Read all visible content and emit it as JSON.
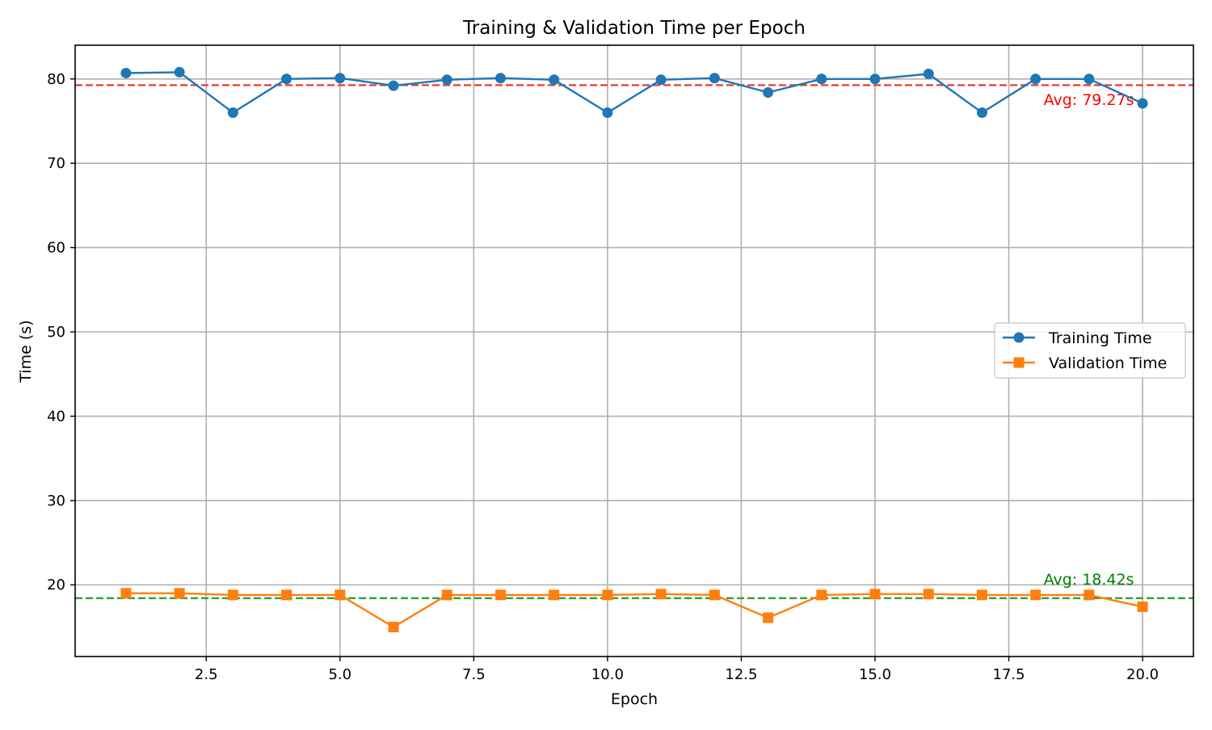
{
  "chart_data": {
    "type": "line",
    "title": "Training & Validation Time per Epoch",
    "xlabel": "Epoch",
    "ylabel": "Time (s)",
    "xlim": [
      0.05,
      20.95
    ],
    "ylim": [
      11.5,
      84.0
    ],
    "xticks": [
      2.5,
      5.0,
      7.5,
      10.0,
      12.5,
      15.0,
      17.5,
      20.0
    ],
    "xtick_labels": [
      "2.5",
      "5.0",
      "7.5",
      "10.0",
      "12.5",
      "15.0",
      "17.5",
      "20.0"
    ],
    "yticks": [
      20,
      30,
      40,
      50,
      60,
      70,
      80
    ],
    "ytick_labels": [
      "20",
      "30",
      "40",
      "50",
      "60",
      "70",
      "80"
    ],
    "grid": true,
    "legend_position": "center-right",
    "x": [
      1,
      2,
      3,
      4,
      5,
      6,
      7,
      8,
      9,
      10,
      11,
      12,
      13,
      14,
      15,
      16,
      17,
      18,
      19,
      20
    ],
    "series": [
      {
        "name": "Training Time",
        "color": "#1f77b4",
        "marker": "circle",
        "values": [
          80.7,
          80.8,
          76.0,
          80.0,
          80.1,
          79.2,
          79.9,
          80.1,
          79.9,
          76.0,
          79.9,
          80.1,
          78.4,
          80.0,
          80.0,
          80.6,
          76.0,
          80.0,
          80.0,
          77.1
        ]
      },
      {
        "name": "Validation Time",
        "color": "#ff7f0e",
        "marker": "square",
        "values": [
          19.0,
          19.0,
          18.8,
          18.8,
          18.8,
          15.0,
          18.8,
          18.8,
          18.8,
          18.8,
          18.9,
          18.8,
          16.1,
          18.8,
          18.9,
          18.9,
          18.8,
          18.8,
          18.8,
          17.4
        ]
      }
    ],
    "reference_lines": [
      {
        "value": 79.27,
        "color": "#e8413c",
        "label": "Avg: 79.27s",
        "label_color": "#ff0000",
        "label_x": 18.15,
        "label_y": 76.9
      },
      {
        "value": 18.42,
        "color": "#3aa13a",
        "label": "Avg: 18.42s",
        "label_color": "#008000",
        "label_x": 18.15,
        "label_y": 20.0
      }
    ]
  }
}
